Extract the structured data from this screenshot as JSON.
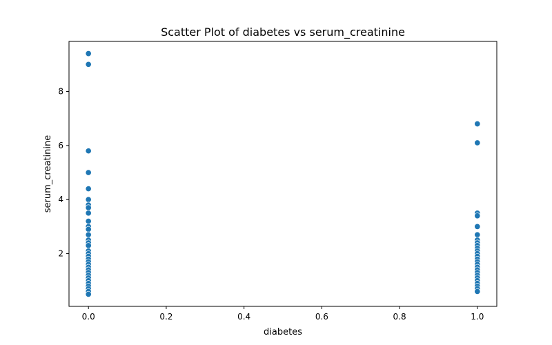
{
  "chart_data": {
    "type": "scatter",
    "title": "Scatter Plot of diabetes vs serum_creatinine",
    "xlabel": "diabetes",
    "ylabel": "serum_creatinine",
    "xlim": [
      -0.05,
      1.05
    ],
    "ylim": [
      0.05,
      9.85
    ],
    "grid": false,
    "color": "#1f77b4",
    "x_ticks": [
      {
        "value": 0.0,
        "label": "0.0"
      },
      {
        "value": 0.2,
        "label": "0.2"
      },
      {
        "value": 0.4,
        "label": "0.4"
      },
      {
        "value": 0.6,
        "label": "0.6"
      },
      {
        "value": 0.8,
        "label": "0.8"
      },
      {
        "value": 1.0,
        "label": "1.0"
      }
    ],
    "y_ticks": [
      {
        "value": 2,
        "label": "2"
      },
      {
        "value": 4,
        "label": "4"
      },
      {
        "value": 6,
        "label": "6"
      },
      {
        "value": 8,
        "label": "8"
      }
    ],
    "points": [
      {
        "x": 0,
        "y": 9.4
      },
      {
        "x": 0,
        "y": 9.0
      },
      {
        "x": 0,
        "y": 5.8
      },
      {
        "x": 0,
        "y": 5.0
      },
      {
        "x": 0,
        "y": 4.4
      },
      {
        "x": 0,
        "y": 4.0
      },
      {
        "x": 0,
        "y": 3.8
      },
      {
        "x": 0,
        "y": 3.7
      },
      {
        "x": 0,
        "y": 3.5
      },
      {
        "x": 0,
        "y": 3.2
      },
      {
        "x": 0,
        "y": 3.0
      },
      {
        "x": 0,
        "y": 2.9
      },
      {
        "x": 0,
        "y": 2.7
      },
      {
        "x": 0,
        "y": 2.5
      },
      {
        "x": 0,
        "y": 2.4
      },
      {
        "x": 0,
        "y": 2.3
      },
      {
        "x": 0,
        "y": 2.1
      },
      {
        "x": 0,
        "y": 2.0
      },
      {
        "x": 0,
        "y": 1.9
      },
      {
        "x": 0,
        "y": 1.8
      },
      {
        "x": 0,
        "y": 1.7
      },
      {
        "x": 0,
        "y": 1.6
      },
      {
        "x": 0,
        "y": 1.5
      },
      {
        "x": 0,
        "y": 1.4
      },
      {
        "x": 0,
        "y": 1.3
      },
      {
        "x": 0,
        "y": 1.2
      },
      {
        "x": 0,
        "y": 1.1
      },
      {
        "x": 0,
        "y": 1.0
      },
      {
        "x": 0,
        "y": 0.9
      },
      {
        "x": 0,
        "y": 0.8
      },
      {
        "x": 0,
        "y": 0.7
      },
      {
        "x": 0,
        "y": 0.6
      },
      {
        "x": 0,
        "y": 0.5
      },
      {
        "x": 1,
        "y": 6.8
      },
      {
        "x": 1,
        "y": 6.1
      },
      {
        "x": 1,
        "y": 3.5
      },
      {
        "x": 1,
        "y": 3.4
      },
      {
        "x": 1,
        "y": 3.0
      },
      {
        "x": 1,
        "y": 2.7
      },
      {
        "x": 1,
        "y": 2.5
      },
      {
        "x": 1,
        "y": 2.4
      },
      {
        "x": 1,
        "y": 2.3
      },
      {
        "x": 1,
        "y": 2.2
      },
      {
        "x": 1,
        "y": 2.1
      },
      {
        "x": 1,
        "y": 2.0
      },
      {
        "x": 1,
        "y": 1.9
      },
      {
        "x": 1,
        "y": 1.8
      },
      {
        "x": 1,
        "y": 1.7
      },
      {
        "x": 1,
        "y": 1.6
      },
      {
        "x": 1,
        "y": 1.5
      },
      {
        "x": 1,
        "y": 1.4
      },
      {
        "x": 1,
        "y": 1.3
      },
      {
        "x": 1,
        "y": 1.2
      },
      {
        "x": 1,
        "y": 1.1
      },
      {
        "x": 1,
        "y": 1.0
      },
      {
        "x": 1,
        "y": 0.9
      },
      {
        "x": 1,
        "y": 0.8
      },
      {
        "x": 1,
        "y": 0.7
      },
      {
        "x": 1,
        "y": 0.6
      }
    ]
  }
}
